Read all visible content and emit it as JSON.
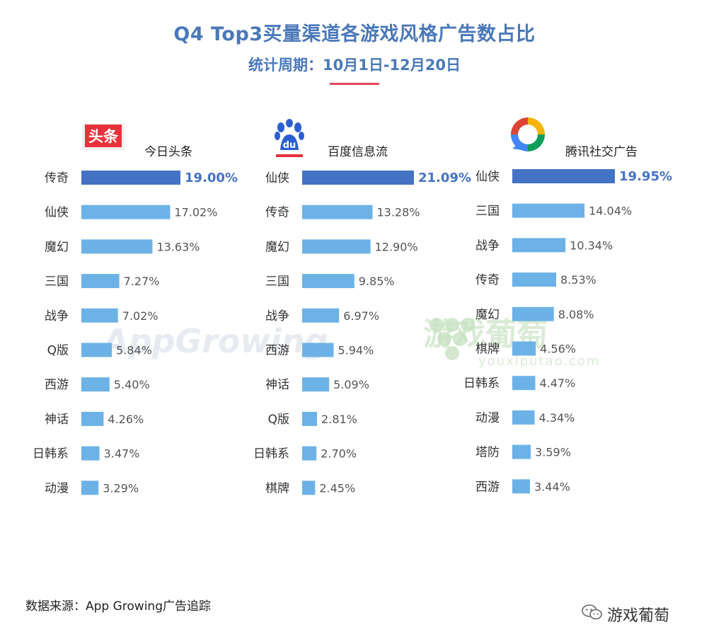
{
  "title": "Q4 Top3买量渠道各游戏风格广告数占比",
  "subtitle": "统计周期：10月1日-12月20日",
  "watermarks": {
    "left": "AppGrowing",
    "right": "游戏葡萄",
    "right_sub": "youxiputao.com"
  },
  "footer": "数据来源：App Growing广告追踪",
  "brand": "游戏葡萄",
  "colors": {
    "highlight": "#4472c4",
    "bar": "#6cb2e6",
    "title": "#4a78b8",
    "label_highlight": "#4472c4",
    "label": "#555555"
  },
  "chart_data": [
    {
      "type": "bar",
      "orientation": "horizontal",
      "channel": "今日头条",
      "logo_text": "头条",
      "categories": [
        "传奇",
        "仙侠",
        "魔幻",
        "三国",
        "战争",
        "Q版",
        "西游",
        "神话",
        "日韩系",
        "动漫"
      ],
      "values": [
        19.0,
        17.02,
        13.63,
        7.27,
        7.02,
        5.84,
        5.4,
        4.26,
        3.47,
        3.29
      ],
      "labels": [
        "19.00%",
        "17.02%",
        "13.63%",
        "7.27%",
        "7.02%",
        "5.84%",
        "5.40%",
        "4.26%",
        "3.47%",
        "3.29%"
      ]
    },
    {
      "type": "bar",
      "orientation": "horizontal",
      "channel": "百度信息流",
      "logo_text": "du",
      "categories": [
        "仙侠",
        "传奇",
        "魔幻",
        "三国",
        "战争",
        "西游",
        "神话",
        "Q版",
        "日韩系",
        "棋牌"
      ],
      "values": [
        21.09,
        13.28,
        12.9,
        9.85,
        6.97,
        5.94,
        5.09,
        2.81,
        2.7,
        2.45
      ],
      "labels": [
        "21.09%",
        "13.28%",
        "12.90%",
        "9.85%",
        "6.97%",
        "5.94%",
        "5.09%",
        "2.81%",
        "2.70%",
        "2.45%"
      ]
    },
    {
      "type": "bar",
      "orientation": "horizontal",
      "channel": "腾讯社交广告",
      "categories": [
        "仙侠",
        "三国",
        "战争",
        "传奇",
        "魔幻",
        "棋牌",
        "日韩系",
        "动漫",
        "塔防",
        "西游"
      ],
      "values": [
        19.95,
        14.04,
        10.34,
        8.53,
        8.08,
        4.56,
        4.47,
        4.34,
        3.59,
        3.44
      ],
      "labels": [
        "19.95%",
        "14.04%",
        "10.34%",
        "8.53%",
        "8.08%",
        "4.56%",
        "4.47%",
        "4.34%",
        "3.59%",
        "3.44%"
      ]
    }
  ]
}
